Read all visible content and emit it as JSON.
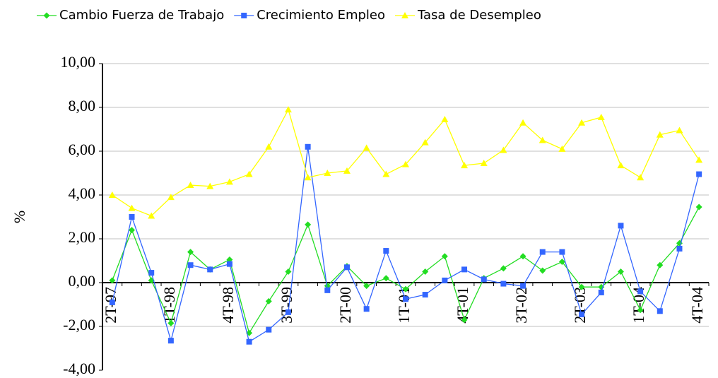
{
  "chart_data": {
    "type": "line",
    "ylabel": "%",
    "categories": [
      "2T-97",
      null,
      null,
      "1T-98",
      null,
      null,
      "4T-98",
      null,
      null,
      "3T-99",
      null,
      null,
      "2T-00",
      null,
      null,
      "1T-01",
      null,
      null,
      "4T-01",
      null,
      null,
      "3T-02",
      null,
      null,
      "2T-03",
      null,
      null,
      "1T-04",
      null,
      null,
      "4T-04"
    ],
    "series": [
      {
        "name": "Cambio Fuerza de Trabajo",
        "color": "#22dd22",
        "marker": "diamond",
        "values": [
          0.1,
          2.4,
          0.1,
          -1.85,
          1.4,
          0.6,
          1.05,
          -2.3,
          -0.85,
          0.5,
          2.65,
          -0.15,
          0.75,
          -0.15,
          0.2,
          -0.3,
          0.5,
          1.2,
          -1.7,
          0.2,
          0.65,
          1.2,
          0.55,
          0.95,
          -0.2,
          -0.2,
          0.5,
          -1.25,
          0.8,
          1.8,
          3.45
        ]
      },
      {
        "name": "Crecimiento Empleo",
        "color": "#3366ff",
        "marker": "square",
        "values": [
          -0.9,
          3.0,
          0.45,
          -2.65,
          0.8,
          0.6,
          0.85,
          -2.7,
          -2.15,
          -1.35,
          6.2,
          -0.35,
          0.7,
          -1.2,
          1.45,
          -0.75,
          -0.55,
          0.1,
          0.6,
          0.15,
          -0.05,
          -0.15,
          1.4,
          1.4,
          -1.45,
          -0.45,
          2.6,
          -0.4,
          -1.3,
          1.55,
          4.95
        ]
      },
      {
        "name": "Tasa de Desempleo",
        "color": "#ffff00",
        "marker": "triangle",
        "values": [
          4.0,
          3.4,
          3.05,
          3.9,
          4.45,
          4.4,
          4.6,
          4.95,
          6.2,
          7.9,
          4.8,
          5.0,
          5.1,
          6.15,
          4.95,
          5.4,
          6.4,
          7.45,
          5.35,
          5.45,
          6.05,
          7.3,
          6.5,
          6.1,
          7.3,
          7.55,
          5.35,
          4.8,
          6.75,
          6.95,
          5.6
        ]
      }
    ],
    "ylim": [
      -4,
      10
    ],
    "yticks": [
      {
        "value": -4,
        "label": "-4,00"
      },
      {
        "value": -2,
        "label": "-2,00"
      },
      {
        "value": 0,
        "label": "0,00"
      },
      {
        "value": 2,
        "label": "2,00"
      },
      {
        "value": 4,
        "label": "4,00"
      },
      {
        "value": 6,
        "label": "6,00"
      },
      {
        "value": 8,
        "label": "8,00"
      },
      {
        "value": 10,
        "label": "10,00"
      }
    ],
    "grid": true,
    "legend": "top"
  }
}
